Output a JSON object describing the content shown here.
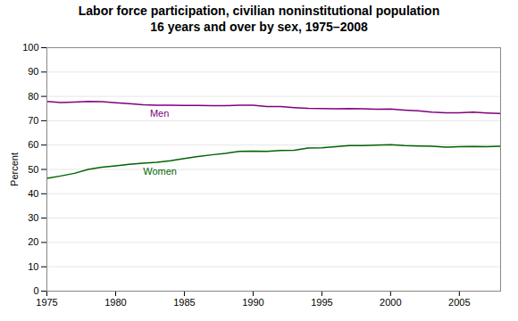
{
  "chart_data": {
    "type": "line",
    "title": "Labor force participation, civilian noninstitutional population\n16 years and over by sex, 1975–2008",
    "ylabel": "Percent",
    "x": [
      1975,
      1976,
      1977,
      1978,
      1979,
      1980,
      1981,
      1982,
      1983,
      1984,
      1985,
      1986,
      1987,
      1988,
      1989,
      1990,
      1991,
      1992,
      1993,
      1994,
      1995,
      1996,
      1997,
      1998,
      1999,
      2000,
      2001,
      2002,
      2003,
      2004,
      2005,
      2006,
      2007,
      2008
    ],
    "series": [
      {
        "name": "Men",
        "color": "#800080",
        "values": [
          77.9,
          77.5,
          77.7,
          77.9,
          77.8,
          77.4,
          77.0,
          76.6,
          76.4,
          76.4,
          76.3,
          76.3,
          76.2,
          76.2,
          76.4,
          76.4,
          75.8,
          75.8,
          75.4,
          75.1,
          75.0,
          74.9,
          75.0,
          74.9,
          74.7,
          74.8,
          74.4,
          74.1,
          73.5,
          73.3,
          73.3,
          73.5,
          73.2,
          73.0
        ]
      },
      {
        "name": "Women",
        "color": "#006400",
        "values": [
          46.3,
          47.3,
          48.4,
          50.0,
          50.9,
          51.5,
          52.1,
          52.6,
          52.9,
          53.6,
          54.5,
          55.3,
          56.0,
          56.6,
          57.4,
          57.5,
          57.4,
          57.8,
          57.9,
          58.8,
          58.9,
          59.3,
          59.8,
          59.8,
          60.0,
          60.2,
          59.8,
          59.6,
          59.5,
          59.2,
          59.3,
          59.4,
          59.3,
          59.5
        ]
      }
    ],
    "annotations": [
      {
        "text": "Men",
        "x": 1982.5,
        "y": 73.0,
        "color": "#800080"
      },
      {
        "text": "Women",
        "x": 1982.0,
        "y": 49.0,
        "color": "#006400"
      }
    ],
    "xlim": [
      1975,
      2008
    ],
    "xticks": [
      1975,
      1980,
      1985,
      1990,
      1995,
      2000,
      2005
    ],
    "ylim": [
      0,
      100
    ],
    "yticks": [
      0,
      10,
      20,
      30,
      40,
      50,
      60,
      70,
      80,
      90,
      100
    ],
    "grid": true
  }
}
